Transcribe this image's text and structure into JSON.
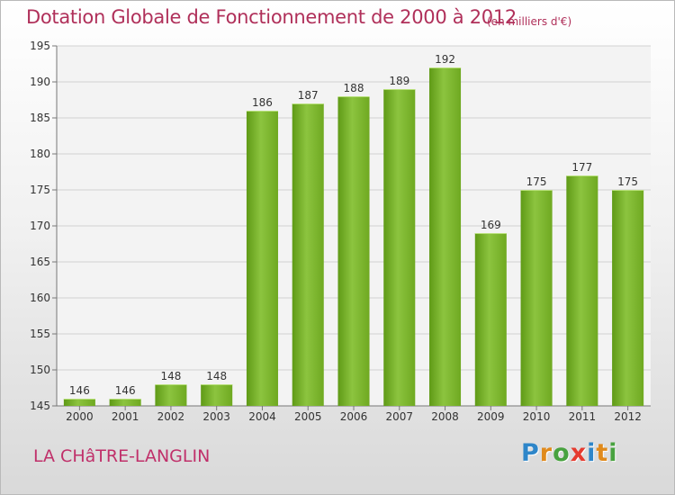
{
  "chart_data": {
    "type": "bar",
    "title": "Dotation Globale de Fonctionnement de 2000 à 2012",
    "subtitle": "(en milliers d'€)",
    "categories": [
      "2000",
      "2001",
      "2002",
      "2003",
      "2004",
      "2005",
      "2006",
      "2007",
      "2008",
      "2009",
      "2010",
      "2011",
      "2012"
    ],
    "values": [
      146,
      146,
      148,
      148,
      186,
      187,
      188,
      189,
      192,
      169,
      175,
      177,
      175
    ],
    "ylim": [
      145,
      195
    ],
    "yticks": [
      145,
      150,
      155,
      160,
      165,
      170,
      175,
      180,
      185,
      190,
      195
    ],
    "xlabel": "",
    "ylabel": "",
    "grid": "horizontal",
    "legend": "none",
    "bar_color": "#8cc43f",
    "bar_color_dark": "#5f9a16"
  },
  "footer": {
    "commune": "LA CHâTRE-LANGLIN"
  },
  "logo": {
    "letters": [
      "P",
      "r",
      "o",
      "x",
      "i",
      "t",
      "i"
    ],
    "colors": [
      "#2e86c9",
      "#e08a1c",
      "#48a23f",
      "#e53b2f",
      "#2e86c9",
      "#e08a1c",
      "#48a23f"
    ]
  },
  "colors": {
    "title": "#b0305a",
    "commune": "#c0306a"
  }
}
